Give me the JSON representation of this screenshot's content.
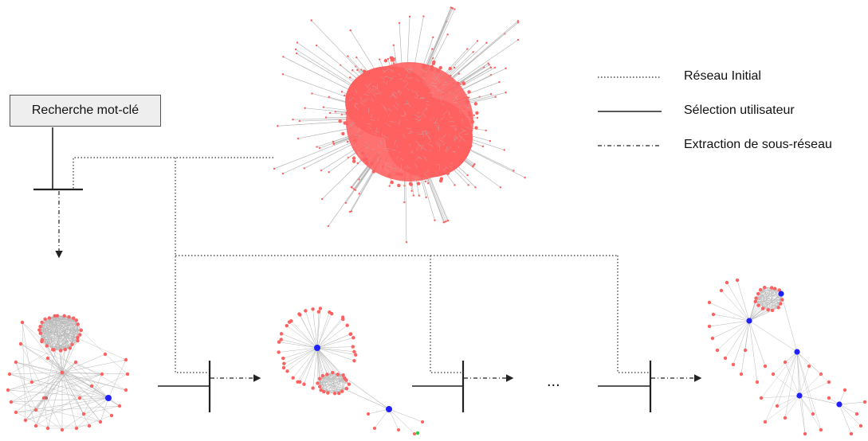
{
  "search_box": {
    "label": "Recherche mot-clé"
  },
  "legend": {
    "items": [
      {
        "label": "Réseau Initial",
        "style": "dotted"
      },
      {
        "label": "Sélection utilisateur",
        "style": "solid"
      },
      {
        "label": "Extraction de sous-réseau",
        "style": "dash-dot"
      }
    ]
  },
  "ellipsis": "...",
  "colors": {
    "node": "#ff6161",
    "selected_node": "#1f1fff",
    "extra_node": "#2ecc40",
    "edge": "#b8b8b8",
    "line": "#222222"
  }
}
